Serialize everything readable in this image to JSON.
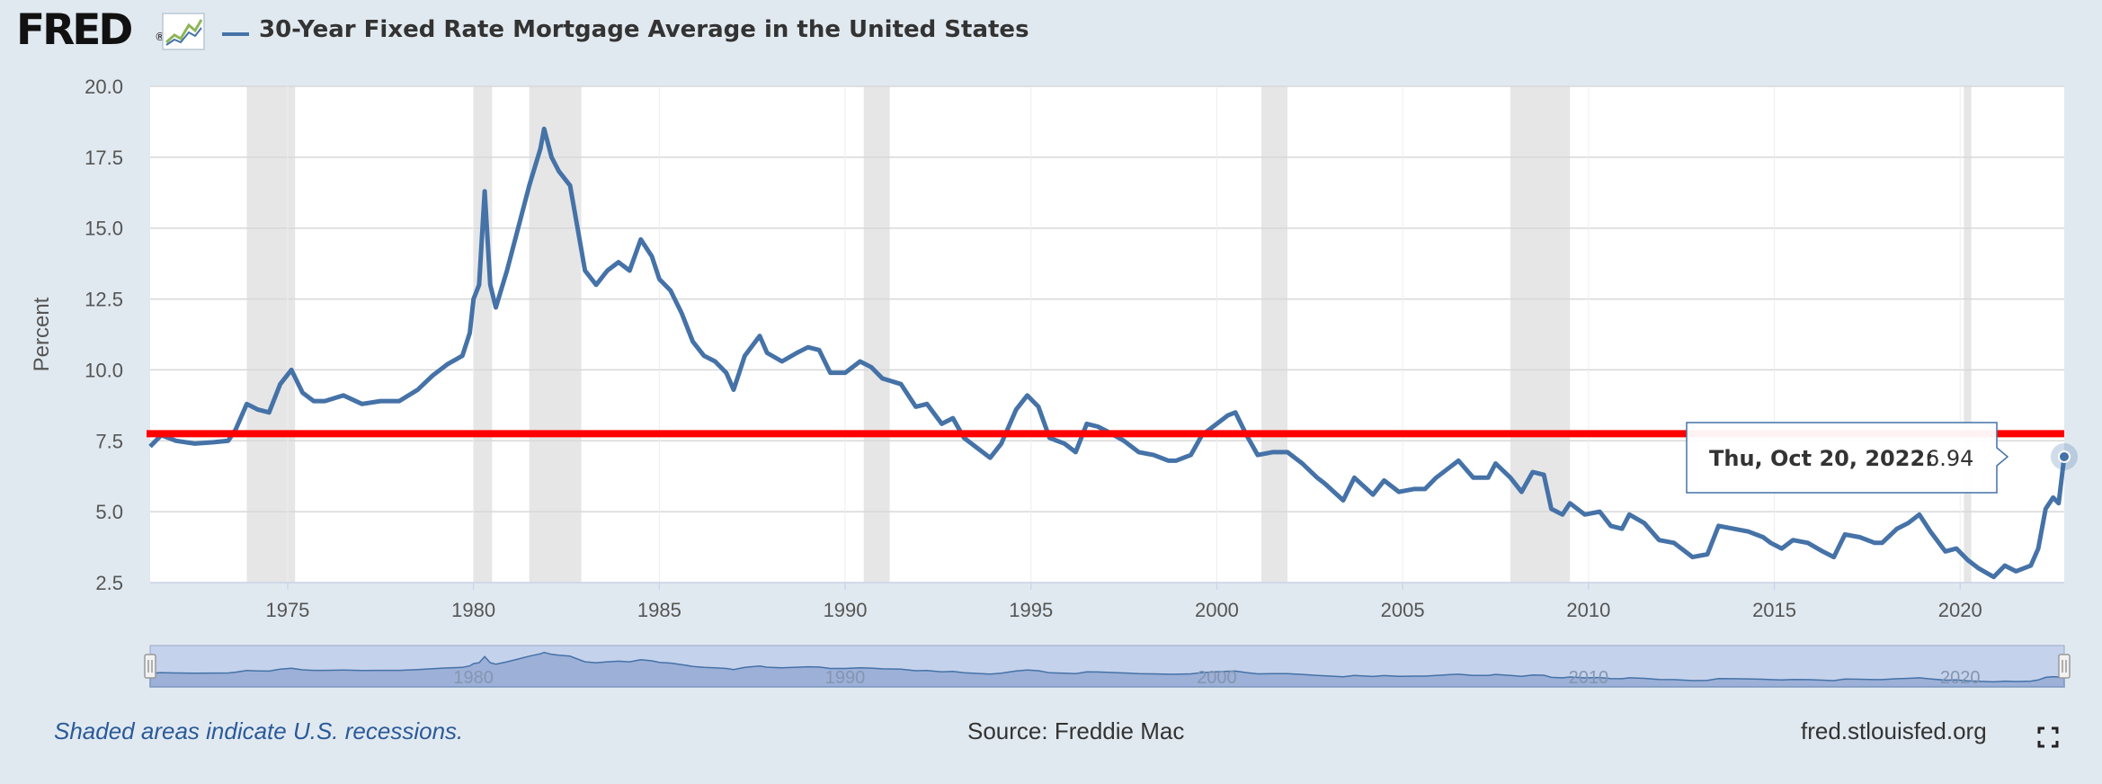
{
  "header": {
    "logo_text": "FRED",
    "logo_reg": "®",
    "title": "30-Year Fixed Rate Mortgage Average in the United States"
  },
  "footer": {
    "note": "Shaded areas indicate U.S. recessions.",
    "source": "Source: Freddie Mac",
    "url": "fred.stlouisfed.org"
  },
  "colors": {
    "series": "#4572a7",
    "recession": "#e6e6e6",
    "annotation_line": "#ff0000",
    "navigator_fill": "#9cb0d8"
  },
  "chart_data": {
    "type": "line",
    "title": "30-Year Fixed Rate Mortgage Average in the United States",
    "xlabel": "",
    "ylabel": "Percent",
    "xlim": [
      1971.3,
      2022.8
    ],
    "ylim": [
      2.5,
      20.0
    ],
    "yticks": [
      2.5,
      5.0,
      7.5,
      10.0,
      12.5,
      15.0,
      17.5,
      20.0
    ],
    "ytick_labels": [
      "2.5",
      "5.0",
      "7.5",
      "10.0",
      "12.5",
      "15.0",
      "17.5",
      "20.0"
    ],
    "xticks": [
      1975,
      1980,
      1985,
      1990,
      1995,
      2000,
      2005,
      2010,
      2015,
      2020
    ],
    "xtick_labels": [
      "1975",
      "1980",
      "1985",
      "1990",
      "1995",
      "2000",
      "2005",
      "2010",
      "2015",
      "2020"
    ],
    "navigator_labels": [
      "1980",
      "1990",
      "2000",
      "2010",
      "2020"
    ],
    "grid": true,
    "recessions": [
      [
        1973.9,
        1975.2
      ],
      [
        1980.0,
        1980.5
      ],
      [
        1981.5,
        1982.9
      ],
      [
        1990.5,
        1991.2
      ],
      [
        2001.2,
        2001.9
      ],
      [
        2007.9,
        2009.5
      ],
      [
        2020.1,
        2020.3
      ]
    ],
    "horizontal_line": 7.75,
    "tooltip": {
      "date": "Thu, Oct 20, 2022",
      "value": "6.94",
      "x": 2022.8,
      "y": 6.94
    },
    "series": [
      {
        "name": "30-Year Fixed Rate Mortgage Average in the United States",
        "points": [
          [
            1971.3,
            7.3
          ],
          [
            1971.6,
            7.7
          ],
          [
            1972.0,
            7.5
          ],
          [
            1972.5,
            7.4
          ],
          [
            1973.0,
            7.45
          ],
          [
            1973.4,
            7.5
          ],
          [
            1973.6,
            7.9
          ],
          [
            1973.9,
            8.8
          ],
          [
            1974.2,
            8.6
          ],
          [
            1974.5,
            8.5
          ],
          [
            1974.8,
            9.5
          ],
          [
            1975.1,
            10.0
          ],
          [
            1975.4,
            9.2
          ],
          [
            1975.7,
            8.9
          ],
          [
            1976.0,
            8.9
          ],
          [
            1976.5,
            9.1
          ],
          [
            1977.0,
            8.8
          ],
          [
            1977.5,
            8.9
          ],
          [
            1978.0,
            8.9
          ],
          [
            1978.5,
            9.3
          ],
          [
            1978.9,
            9.8
          ],
          [
            1979.3,
            10.2
          ],
          [
            1979.7,
            10.5
          ],
          [
            1979.9,
            11.3
          ],
          [
            1980.0,
            12.5
          ],
          [
            1980.15,
            13.0
          ],
          [
            1980.3,
            16.3
          ],
          [
            1980.45,
            13.0
          ],
          [
            1980.6,
            12.2
          ],
          [
            1980.9,
            13.5
          ],
          [
            1981.2,
            15.0
          ],
          [
            1981.5,
            16.5
          ],
          [
            1981.8,
            17.8
          ],
          [
            1981.9,
            18.5
          ],
          [
            1982.1,
            17.5
          ],
          [
            1982.3,
            17.0
          ],
          [
            1982.6,
            16.5
          ],
          [
            1982.8,
            15.0
          ],
          [
            1983.0,
            13.5
          ],
          [
            1983.3,
            13.0
          ],
          [
            1983.6,
            13.5
          ],
          [
            1983.9,
            13.8
          ],
          [
            1984.2,
            13.5
          ],
          [
            1984.5,
            14.6
          ],
          [
            1984.8,
            14.0
          ],
          [
            1985.0,
            13.2
          ],
          [
            1985.3,
            12.8
          ],
          [
            1985.6,
            12.0
          ],
          [
            1985.9,
            11.0
          ],
          [
            1986.2,
            10.5
          ],
          [
            1986.5,
            10.3
          ],
          [
            1986.8,
            9.9
          ],
          [
            1987.0,
            9.3
          ],
          [
            1987.3,
            10.5
          ],
          [
            1987.7,
            11.2
          ],
          [
            1987.9,
            10.6
          ],
          [
            1988.3,
            10.3
          ],
          [
            1988.7,
            10.6
          ],
          [
            1989.0,
            10.8
          ],
          [
            1989.3,
            10.7
          ],
          [
            1989.6,
            9.9
          ],
          [
            1990.0,
            9.9
          ],
          [
            1990.4,
            10.3
          ],
          [
            1990.7,
            10.1
          ],
          [
            1991.0,
            9.7
          ],
          [
            1991.5,
            9.5
          ],
          [
            1991.9,
            8.7
          ],
          [
            1992.2,
            8.8
          ],
          [
            1992.6,
            8.1
          ],
          [
            1992.9,
            8.3
          ],
          [
            1993.2,
            7.6
          ],
          [
            1993.6,
            7.2
          ],
          [
            1993.9,
            6.9
          ],
          [
            1994.2,
            7.4
          ],
          [
            1994.6,
            8.6
          ],
          [
            1994.9,
            9.1
          ],
          [
            1995.2,
            8.7
          ],
          [
            1995.5,
            7.6
          ],
          [
            1995.9,
            7.4
          ],
          [
            1996.2,
            7.1
          ],
          [
            1996.5,
            8.1
          ],
          [
            1996.8,
            8.0
          ],
          [
            1997.1,
            7.8
          ],
          [
            1997.5,
            7.5
          ],
          [
            1997.9,
            7.1
          ],
          [
            1998.3,
            7.0
          ],
          [
            1998.7,
            6.8
          ],
          [
            1998.9,
            6.8
          ],
          [
            1999.3,
            7.0
          ],
          [
            1999.6,
            7.7
          ],
          [
            1999.9,
            8.0
          ],
          [
            2000.3,
            8.4
          ],
          [
            2000.5,
            8.5
          ],
          [
            2000.8,
            7.7
          ],
          [
            2001.1,
            7.0
          ],
          [
            2001.5,
            7.1
          ],
          [
            2001.9,
            7.1
          ],
          [
            2002.3,
            6.7
          ],
          [
            2002.7,
            6.2
          ],
          [
            2002.9,
            6.0
          ],
          [
            2003.4,
            5.4
          ],
          [
            2003.7,
            6.2
          ],
          [
            2004.2,
            5.6
          ],
          [
            2004.5,
            6.1
          ],
          [
            2004.9,
            5.7
          ],
          [
            2005.3,
            5.8
          ],
          [
            2005.6,
            5.8
          ],
          [
            2005.9,
            6.2
          ],
          [
            2006.3,
            6.6
          ],
          [
            2006.5,
            6.8
          ],
          [
            2006.9,
            6.2
          ],
          [
            2007.3,
            6.2
          ],
          [
            2007.5,
            6.7
          ],
          [
            2007.9,
            6.2
          ],
          [
            2008.2,
            5.7
          ],
          [
            2008.5,
            6.4
          ],
          [
            2008.8,
            6.3
          ],
          [
            2009.0,
            5.1
          ],
          [
            2009.3,
            4.9
          ],
          [
            2009.5,
            5.3
          ],
          [
            2009.9,
            4.9
          ],
          [
            2010.3,
            5.0
          ],
          [
            2010.6,
            4.5
          ],
          [
            2010.9,
            4.4
          ],
          [
            2011.1,
            4.9
          ],
          [
            2011.5,
            4.6
          ],
          [
            2011.9,
            4.0
          ],
          [
            2012.3,
            3.9
          ],
          [
            2012.8,
            3.4
          ],
          [
            2013.2,
            3.5
          ],
          [
            2013.5,
            4.5
          ],
          [
            2013.9,
            4.4
          ],
          [
            2014.3,
            4.3
          ],
          [
            2014.7,
            4.1
          ],
          [
            2014.9,
            3.9
          ],
          [
            2015.2,
            3.7
          ],
          [
            2015.5,
            4.0
          ],
          [
            2015.9,
            3.9
          ],
          [
            2016.3,
            3.6
          ],
          [
            2016.6,
            3.4
          ],
          [
            2016.9,
            4.2
          ],
          [
            2017.3,
            4.1
          ],
          [
            2017.7,
            3.9
          ],
          [
            2017.9,
            3.9
          ],
          [
            2018.3,
            4.4
          ],
          [
            2018.6,
            4.6
          ],
          [
            2018.9,
            4.9
          ],
          [
            2019.2,
            4.3
          ],
          [
            2019.6,
            3.6
          ],
          [
            2019.9,
            3.7
          ],
          [
            2020.2,
            3.3
          ],
          [
            2020.5,
            3.0
          ],
          [
            2020.9,
            2.7
          ],
          [
            2021.2,
            3.1
          ],
          [
            2021.5,
            2.9
          ],
          [
            2021.9,
            3.1
          ],
          [
            2022.1,
            3.7
          ],
          [
            2022.3,
            5.1
          ],
          [
            2022.5,
            5.5
          ],
          [
            2022.65,
            5.3
          ],
          [
            2022.8,
            6.94
          ]
        ]
      }
    ]
  }
}
